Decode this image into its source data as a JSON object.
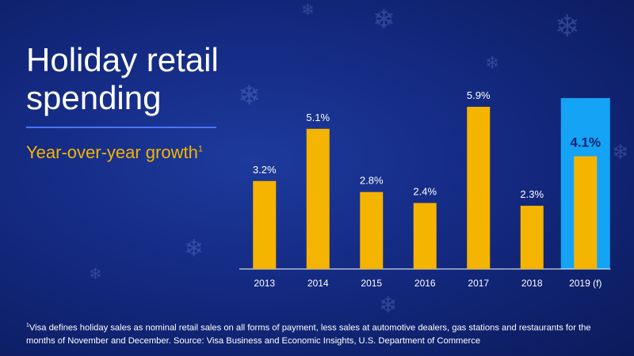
{
  "title": "Holiday retail spending",
  "subtitle": "Year-over-year growth",
  "subtitle_footnote_marker": "1",
  "footnote_marker": "1",
  "footnote": "Visa defines holiday sales as nominal retail sales on all forms of payment, less sales at automotive dealers, gas stations and restaurants for the months of November and December. Source: Visa Business and Economic Insights, U.S. Department of Commerce",
  "colors": {
    "bar": "#f5b400",
    "highlight_background": "#14a3f5",
    "title": "#ffffff",
    "subtitle": "#f5b400",
    "divider": "#4a74ff",
    "axis": "#ffffff"
  },
  "chart_data": {
    "type": "bar",
    "categories": [
      "2013",
      "2014",
      "2015",
      "2016",
      "2017",
      "2018",
      "2019 (f)"
    ],
    "values": [
      3.2,
      5.1,
      2.8,
      2.4,
      5.9,
      2.3,
      4.1
    ],
    "data_labels": [
      "3.2%",
      "5.1%",
      "2.8%",
      "2.4%",
      "5.9%",
      "2.3%",
      "4.1%"
    ],
    "highlighted_category": "2019 (f)",
    "title": "",
    "xlabel": "",
    "ylabel": "",
    "ylim": [
      0,
      6.5
    ],
    "grid": false,
    "legend": "none"
  }
}
